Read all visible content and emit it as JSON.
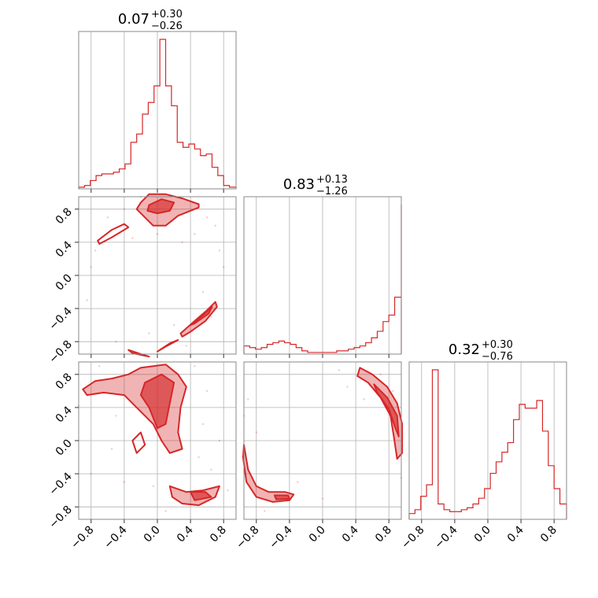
{
  "chart_data": {
    "type": "corner",
    "color": "#d62728",
    "axis_range": [
      -0.95,
      0.95
    ],
    "ticks": [
      -0.8,
      -0.4,
      0.0,
      0.4,
      0.8
    ],
    "tick_labels": [
      "−0.8",
      "−0.4",
      "0.0",
      "0.4",
      "0.8"
    ],
    "grid": true,
    "marginals": [
      {
        "title": {
          "value": "0.07",
          "upper": "+0.30",
          "lower": "−0.26"
        },
        "x": [
          -0.95,
          -0.88,
          -0.81,
          -0.74,
          -0.67,
          -0.6,
          -0.53,
          -0.46,
          -0.39,
          -0.32,
          -0.25,
          -0.18,
          -0.11,
          -0.04,
          0.03,
          0.1,
          0.17,
          0.24,
          0.31,
          0.38,
          0.45,
          0.52,
          0.59,
          0.66,
          0.73,
          0.8,
          0.87,
          0.95
        ],
        "density": [
          0.01,
          0.02,
          0.05,
          0.08,
          0.09,
          0.09,
          0.1,
          0.12,
          0.15,
          0.28,
          0.33,
          0.45,
          0.52,
          0.62,
          0.9,
          0.62,
          0.5,
          0.28,
          0.25,
          0.27,
          0.24,
          0.2,
          0.21,
          0.13,
          0.08,
          0.02,
          0.01,
          0.01
        ]
      },
      {
        "title": {
          "value": "0.83",
          "upper": "+0.13",
          "lower": "−1.26"
        },
        "x": [
          -0.95,
          -0.88,
          -0.81,
          -0.74,
          -0.67,
          -0.6,
          -0.53,
          -0.46,
          -0.39,
          -0.32,
          -0.25,
          -0.18,
          -0.11,
          -0.04,
          0.03,
          0.1,
          0.17,
          0.24,
          0.31,
          0.38,
          0.45,
          0.52,
          0.59,
          0.66,
          0.73,
          0.8,
          0.87,
          0.95
        ],
        "density": [
          0.05,
          0.04,
          0.03,
          0.04,
          0.06,
          0.07,
          0.08,
          0.07,
          0.06,
          0.04,
          0.02,
          0.01,
          0.01,
          0.01,
          0.01,
          0.01,
          0.02,
          0.02,
          0.03,
          0.04,
          0.05,
          0.07,
          0.1,
          0.14,
          0.2,
          0.24,
          0.35,
          0.92
        ]
      },
      {
        "title": {
          "value": "0.32",
          "upper": "+0.30",
          "lower": "−0.76"
        },
        "x": [
          -0.95,
          -0.88,
          -0.81,
          -0.74,
          -0.67,
          -0.6,
          -0.53,
          -0.46,
          -0.39,
          -0.32,
          -0.25,
          -0.18,
          -0.11,
          -0.04,
          0.03,
          0.1,
          0.17,
          0.24,
          0.31,
          0.38,
          0.45,
          0.52,
          0.59,
          0.66,
          0.73,
          0.8,
          0.87,
          0.95
        ],
        "density": [
          0.03,
          0.05,
          0.12,
          0.18,
          0.78,
          0.08,
          0.05,
          0.04,
          0.04,
          0.05,
          0.06,
          0.08,
          0.11,
          0.16,
          0.24,
          0.3,
          0.35,
          0.4,
          0.52,
          0.6,
          0.58,
          0.58,
          0.62,
          0.46,
          0.28,
          0.16,
          0.08,
          0.02
        ]
      }
    ],
    "pairs": [
      {
        "row": 1,
        "col": 0,
        "regions": [
          {
            "points": [
              [
                -0.2,
                0.88
              ],
              [
                -0.1,
                0.98
              ],
              [
                0.1,
                0.98
              ],
              [
                0.3,
                0.93
              ],
              [
                0.5,
                0.86
              ],
              [
                0.5,
                0.82
              ],
              [
                0.25,
                0.72
              ],
              [
                0.1,
                0.6
              ],
              [
                -0.05,
                0.6
              ],
              [
                -0.15,
                0.7
              ],
              [
                -0.25,
                0.8
              ]
            ],
            "level": 2
          },
          {
            "points": [
              [
                -0.1,
                0.85
              ],
              [
                0.05,
                0.92
              ],
              [
                0.2,
                0.88
              ],
              [
                0.15,
                0.78
              ],
              [
                0.0,
                0.75
              ],
              [
                -0.12,
                0.78
              ]
            ],
            "level": 3
          },
          {
            "points": [
              [
                -0.72,
                0.42
              ],
              [
                -0.55,
                0.55
              ],
              [
                -0.4,
                0.62
              ],
              [
                -0.35,
                0.58
              ],
              [
                -0.55,
                0.46
              ],
              [
                -0.7,
                0.38
              ]
            ],
            "level": 1
          },
          {
            "points": [
              [
                0.28,
                -0.7
              ],
              [
                0.45,
                -0.55
              ],
              [
                0.6,
                -0.42
              ],
              [
                0.7,
                -0.32
              ],
              [
                0.72,
                -0.38
              ],
              [
                0.58,
                -0.55
              ],
              [
                0.4,
                -0.68
              ],
              [
                0.3,
                -0.74
              ]
            ],
            "level": 2
          },
          {
            "points": [
              [
                0.4,
                -0.6
              ],
              [
                0.55,
                -0.48
              ],
              [
                0.66,
                -0.38
              ],
              [
                0.62,
                -0.46
              ],
              [
                0.45,
                -0.58
              ]
            ],
            "level": 3
          },
          {
            "points": [
              [
                -0.35,
                -0.9
              ],
              [
                -0.2,
                -0.95
              ],
              [
                -0.1,
                -0.98
              ],
              [
                -0.3,
                -0.94
              ]
            ],
            "level": 1
          },
          {
            "points": [
              [
                0.0,
                -0.92
              ],
              [
                0.15,
                -0.82
              ],
              [
                0.25,
                -0.78
              ],
              [
                0.1,
                -0.86
              ]
            ],
            "level": 1
          }
        ],
        "scatter": [
          [
            -0.8,
            0.1
          ],
          [
            -0.75,
            0.3
          ],
          [
            -0.6,
            0.7
          ],
          [
            -0.4,
            0.8
          ],
          [
            -0.3,
            0.45
          ],
          [
            0.6,
            0.7
          ],
          [
            0.7,
            0.6
          ],
          [
            0.75,
            0.3
          ],
          [
            0.2,
            -0.6
          ],
          [
            0.55,
            -0.2
          ],
          [
            0.65,
            -0.5
          ],
          [
            -0.5,
            -0.8
          ],
          [
            -0.1,
            -0.7
          ],
          [
            0.3,
            0.4
          ],
          [
            0.0,
            0.5
          ],
          [
            -0.85,
            -0.3
          ],
          [
            0.8,
            0.1
          ],
          [
            0.45,
            0.5
          ],
          [
            -0.2,
            0.95
          ],
          [
            0.35,
            -0.85
          ]
        ]
      },
      {
        "row": 2,
        "col": 0,
        "regions": [
          {
            "points": [
              [
                -0.9,
                0.62
              ],
              [
                -0.75,
                0.72
              ],
              [
                -0.55,
                0.75
              ],
              [
                -0.35,
                0.8
              ],
              [
                -0.2,
                0.88
              ],
              [
                0.1,
                0.92
              ],
              [
                0.25,
                0.8
              ],
              [
                0.35,
                0.65
              ],
              [
                0.28,
                0.4
              ],
              [
                0.25,
                0.1
              ],
              [
                0.3,
                -0.1
              ],
              [
                0.15,
                -0.15
              ],
              [
                0.05,
                0.0
              ],
              [
                -0.05,
                0.2
              ],
              [
                -0.25,
                0.4
              ],
              [
                -0.4,
                0.55
              ],
              [
                -0.65,
                0.58
              ],
              [
                -0.85,
                0.55
              ]
            ],
            "level": 2
          },
          {
            "points": [
              [
                -0.15,
                0.7
              ],
              [
                0.05,
                0.8
              ],
              [
                0.2,
                0.7
              ],
              [
                0.15,
                0.45
              ],
              [
                0.1,
                0.2
              ],
              [
                0.0,
                0.15
              ],
              [
                -0.1,
                0.4
              ],
              [
                -0.2,
                0.55
              ]
            ],
            "level": 3
          },
          {
            "points": [
              [
                -0.3,
                0.0
              ],
              [
                -0.2,
                0.1
              ],
              [
                -0.15,
                -0.05
              ],
              [
                -0.25,
                -0.15
              ]
            ],
            "level": 1
          },
          {
            "points": [
              [
                0.15,
                -0.55
              ],
              [
                0.35,
                -0.62
              ],
              [
                0.55,
                -0.6
              ],
              [
                0.75,
                -0.55
              ],
              [
                0.7,
                -0.68
              ],
              [
                0.5,
                -0.78
              ],
              [
                0.3,
                -0.76
              ],
              [
                0.18,
                -0.68
              ]
            ],
            "level": 2
          },
          {
            "points": [
              [
                0.4,
                -0.62
              ],
              [
                0.58,
                -0.62
              ],
              [
                0.65,
                -0.68
              ],
              [
                0.45,
                -0.72
              ]
            ],
            "level": 3
          }
        ],
        "scatter": [
          [
            -0.95,
            0.42
          ],
          [
            -0.7,
            0.9
          ],
          [
            0.45,
            0.9
          ],
          [
            0.55,
            0.2
          ],
          [
            0.5,
            -0.2
          ],
          [
            -0.55,
            -0.1
          ],
          [
            -0.5,
            0.3
          ],
          [
            0.65,
            -0.35
          ],
          [
            -0.05,
            -0.55
          ],
          [
            0.85,
            -0.6
          ],
          [
            -0.8,
            -0.4
          ],
          [
            0.6,
            0.6
          ],
          [
            -0.4,
            -0.5
          ],
          [
            0.1,
            -0.85
          ],
          [
            0.75,
            0.0
          ]
        ]
      },
      {
        "row": 2,
        "col": 1,
        "regions": [
          {
            "points": [
              [
                0.45,
                0.88
              ],
              [
                0.6,
                0.8
              ],
              [
                0.78,
                0.65
              ],
              [
                0.9,
                0.45
              ],
              [
                0.96,
                0.2
              ],
              [
                0.96,
                -0.15
              ],
              [
                0.9,
                -0.22
              ],
              [
                0.86,
                0.05
              ],
              [
                0.82,
                0.3
              ],
              [
                0.7,
                0.52
              ],
              [
                0.55,
                0.7
              ],
              [
                0.42,
                0.78
              ]
            ],
            "level": 2
          },
          {
            "points": [
              [
                0.62,
                0.68
              ],
              [
                0.78,
                0.52
              ],
              [
                0.9,
                0.3
              ],
              [
                0.92,
                0.05
              ],
              [
                0.88,
                0.15
              ],
              [
                0.8,
                0.38
              ],
              [
                0.66,
                0.58
              ]
            ],
            "level": 3
          },
          {
            "points": [
              [
                -0.95,
                -0.05
              ],
              [
                -0.9,
                -0.35
              ],
              [
                -0.8,
                -0.55
              ],
              [
                -0.65,
                -0.62
              ],
              [
                -0.45,
                -0.62
              ],
              [
                -0.35,
                -0.65
              ],
              [
                -0.4,
                -0.72
              ],
              [
                -0.6,
                -0.74
              ],
              [
                -0.8,
                -0.68
              ],
              [
                -0.92,
                -0.5
              ],
              [
                -0.96,
                -0.2
              ]
            ],
            "level": 2
          },
          {
            "points": [
              [
                -0.58,
                -0.66
              ],
              [
                -0.42,
                -0.66
              ],
              [
                -0.4,
                -0.7
              ],
              [
                -0.56,
                -0.71
              ]
            ],
            "level": 3
          }
        ],
        "scatter": [
          [
            -0.9,
            0.5
          ],
          [
            -0.8,
            0.1
          ],
          [
            0.2,
            0.85
          ],
          [
            0.3,
            0.65
          ],
          [
            0.95,
            -0.45
          ],
          [
            -0.3,
            -0.5
          ],
          [
            -0.7,
            -0.85
          ],
          [
            0.7,
            0.8
          ],
          [
            -0.95,
            0.3
          ],
          [
            0.85,
            0.6
          ],
          [
            0.5,
            0.5
          ],
          [
            0.0,
            -0.7
          ]
        ]
      }
    ]
  }
}
